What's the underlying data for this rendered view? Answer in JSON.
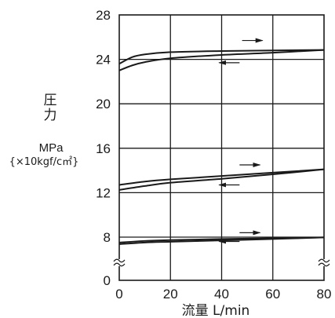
{
  "chart_data": {
    "type": "line",
    "title": "",
    "ylabel": {
      "line1": "圧",
      "line2": "力",
      "unit": "MPa",
      "conversion": "{×10kgf/c㎡}"
    },
    "xlabel": "流量 L/min",
    "xlim": [
      0,
      80
    ],
    "ylim": [
      0,
      28
    ],
    "y_axis_break": true,
    "x_ticks": [
      "0",
      "20",
      "40",
      "60",
      "80"
    ],
    "y_ticks": [
      "0",
      "8",
      "12",
      "16",
      "20",
      "24",
      "28"
    ],
    "grid": true,
    "grid_x": [
      20,
      40,
      60
    ],
    "grid_y": [
      8,
      12,
      16,
      20,
      24
    ],
    "series": [
      {
        "group": "24",
        "direction": "increasing",
        "x": [
          0,
          5,
          10,
          20,
          40,
          60,
          80
        ],
        "y": [
          23.6,
          24.2,
          24.45,
          24.65,
          24.75,
          24.8,
          24.85
        ]
      },
      {
        "group": "24",
        "direction": "decreasing",
        "x": [
          0,
          5,
          10,
          20,
          40,
          60,
          80
        ],
        "y": [
          23.0,
          23.45,
          23.75,
          24.1,
          24.4,
          24.6,
          24.85
        ]
      },
      {
        "group": "12",
        "direction": "increasing",
        "x": [
          0,
          10,
          20,
          40,
          60,
          80
        ],
        "y": [
          12.7,
          13.0,
          13.2,
          13.5,
          13.8,
          14.1
        ]
      },
      {
        "group": "12",
        "direction": "decreasing",
        "x": [
          0,
          10,
          20,
          40,
          60,
          80
        ],
        "y": [
          12.25,
          12.6,
          12.9,
          13.25,
          13.65,
          14.1
        ]
      },
      {
        "group": "8",
        "direction": "increasing",
        "x": [
          0,
          10,
          20,
          40,
          60,
          80
        ],
        "y": [
          7.0,
          7.3,
          7.45,
          7.65,
          7.8,
          7.95
        ]
      },
      {
        "group": "8",
        "direction": "decreasing",
        "x": [
          0,
          10,
          20,
          40,
          60,
          80
        ],
        "y": [
          6.7,
          7.0,
          7.15,
          7.4,
          7.65,
          7.95
        ]
      }
    ],
    "arrows": [
      {
        "direction": "right",
        "x": [
          48,
          56
        ],
        "y": 25.7
      },
      {
        "direction": "left",
        "x": [
          47,
          39
        ],
        "y": 23.7
      },
      {
        "direction": "right",
        "x": [
          47,
          55
        ],
        "y": 14.5
      },
      {
        "direction": "left",
        "x": [
          47,
          39
        ],
        "y": 12.7
      },
      {
        "direction": "right",
        "x": [
          47,
          55
        ],
        "y": 8.4
      },
      {
        "direction": "left",
        "x": [
          47,
          39
        ],
        "y": 7.2
      }
    ]
  }
}
